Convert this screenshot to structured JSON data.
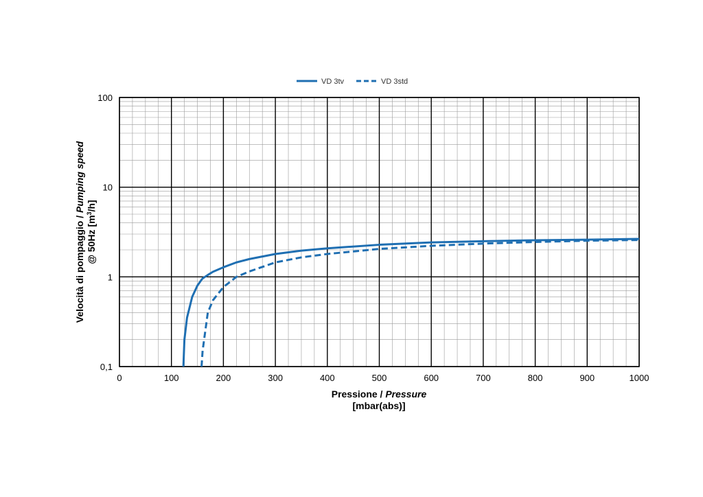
{
  "chart_data": {
    "type": "line",
    "x": [
      120,
      123,
      125,
      130,
      140,
      150,
      158,
      160,
      170,
      180,
      200,
      225,
      250,
      300,
      350,
      400,
      500,
      600,
      700,
      800,
      900,
      1000
    ],
    "series": [
      {
        "name": "VD 3tv",
        "style": "solid",
        "color": "#1f6fb2",
        "values": [
          null,
          0.1,
          0.2,
          0.35,
          0.6,
          0.8,
          0.93,
          0.96,
          1.05,
          1.14,
          1.28,
          1.45,
          1.58,
          1.8,
          1.96,
          2.08,
          2.28,
          2.42,
          2.5,
          2.56,
          2.6,
          2.65
        ]
      },
      {
        "name": "VD 3std",
        "style": "dashed",
        "color": "#1f6fb2",
        "values": [
          null,
          null,
          null,
          null,
          null,
          null,
          0.1,
          0.15,
          0.4,
          0.55,
          0.77,
          1.0,
          1.15,
          1.45,
          1.65,
          1.8,
          2.05,
          2.22,
          2.35,
          2.45,
          2.53,
          2.58
        ]
      }
    ],
    "xlim": [
      0,
      1000
    ],
    "ylim": [
      0.1,
      100
    ],
    "yscale": "log",
    "x_ticks": [
      "0",
      "100",
      "200",
      "300",
      "400",
      "500",
      "600",
      "700",
      "800",
      "900",
      "1000"
    ],
    "y_ticks": [
      "0,1",
      "1",
      "10",
      "100"
    ],
    "xlabel": {
      "line1_regular": "Pressione / ",
      "line1_italic": "Pressure",
      "line2": "[mbar(abs)]"
    },
    "ylabel": {
      "line1_regular": "Velocità di pompaggio / ",
      "line1_italic": "Pumping speed",
      "line2_prefix": "@ 50Hz [m",
      "line2_sup": "3",
      "line2_suffix": "/h]"
    },
    "grid": true,
    "legend_position": "top-center"
  }
}
